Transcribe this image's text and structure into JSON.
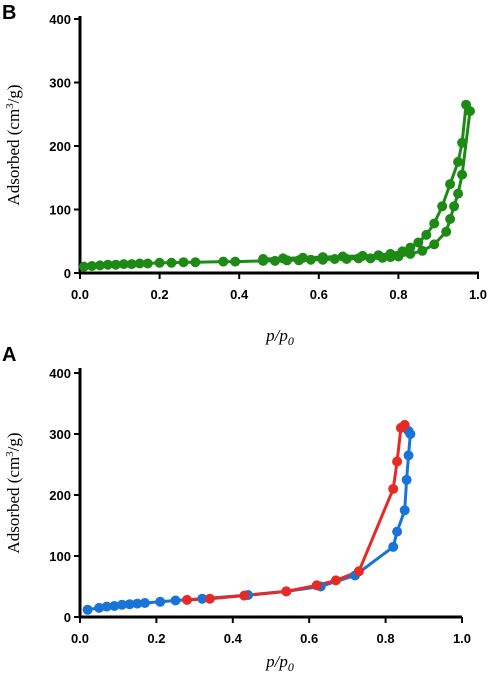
{
  "chart_data": [
    {
      "panel": "B",
      "type": "line",
      "xlabel": "p/p0",
      "ylabel": "Adsorbed (cm3/g)",
      "xlim": [
        0,
        1.0
      ],
      "ylim": [
        0,
        400
      ],
      "xticks": [
        "0.0",
        "0.2",
        "0.4",
        "0.6",
        "0.8",
        "1.0"
      ],
      "yticks": [
        "0",
        "100",
        "200",
        "300",
        "400"
      ],
      "grid": false,
      "series": [
        {
          "color": "#1e8a16",
          "x": [
            0.01,
            0.03,
            0.05,
            0.07,
            0.09,
            0.11,
            0.13,
            0.15,
            0.17,
            0.2,
            0.23,
            0.26,
            0.29,
            0.36,
            0.39,
            0.46,
            0.49,
            0.52,
            0.55,
            0.58,
            0.61,
            0.64,
            0.67,
            0.7,
            0.73,
            0.76,
            0.78,
            0.8,
            0.83,
            0.86,
            0.89,
            0.92,
            0.93,
            0.94,
            0.95,
            0.96,
            0.98
          ],
          "y": [
            10,
            11,
            12,
            13,
            13,
            14,
            14,
            15,
            15,
            16,
            16,
            17,
            17,
            18,
            18,
            19,
            19,
            20,
            20,
            21,
            21,
            22,
            22,
            23,
            23,
            24,
            25,
            26,
            30,
            35,
            45,
            65,
            85,
            105,
            125,
            155,
            255
          ]
        },
        {
          "color": "#1e8a16",
          "x": [
            0.97,
            0.96,
            0.95,
            0.93,
            0.91,
            0.89,
            0.87,
            0.85,
            0.83,
            0.81,
            0.78,
            0.75,
            0.71,
            0.66,
            0.61,
            0.56,
            0.51,
            0.46
          ],
          "y": [
            265,
            205,
            175,
            140,
            105,
            78,
            60,
            48,
            40,
            34,
            30,
            28,
            27,
            26,
            25,
            24,
            23,
            22
          ]
        }
      ]
    },
    {
      "panel": "A",
      "type": "line",
      "xlabel": "p/p0",
      "ylabel": "Adsorbed (cm3/g)",
      "xlim": [
        0,
        1.0
      ],
      "ylim": [
        0,
        400
      ],
      "xticks": [
        "0.0",
        "0.2",
        "0.4",
        "0.6",
        "0.8",
        "1.0"
      ],
      "yticks": [
        "0",
        "100",
        "200",
        "300",
        "400"
      ],
      "grid": false,
      "series": [
        {
          "color": "#1874d6",
          "x": [
            0.02,
            0.05,
            0.07,
            0.09,
            0.11,
            0.13,
            0.15,
            0.17,
            0.21,
            0.25,
            0.32,
            0.44,
            0.54,
            0.63,
            0.72,
            0.82,
            0.83,
            0.85,
            0.855,
            0.86,
            0.865,
            0.86
          ],
          "y": [
            12,
            15,
            17,
            18,
            20,
            21,
            22,
            23,
            25,
            27,
            30,
            36,
            42,
            50,
            68,
            115,
            140,
            175,
            225,
            265,
            300,
            305
          ]
        },
        {
          "color": "#e62a26",
          "x": [
            0.85,
            0.84,
            0.83,
            0.82,
            0.73,
            0.67,
            0.62,
            0.54,
            0.43,
            0.34,
            0.28
          ],
          "y": [
            315,
            310,
            255,
            210,
            75,
            60,
            52,
            42,
            35,
            30,
            28
          ]
        }
      ]
    }
  ]
}
